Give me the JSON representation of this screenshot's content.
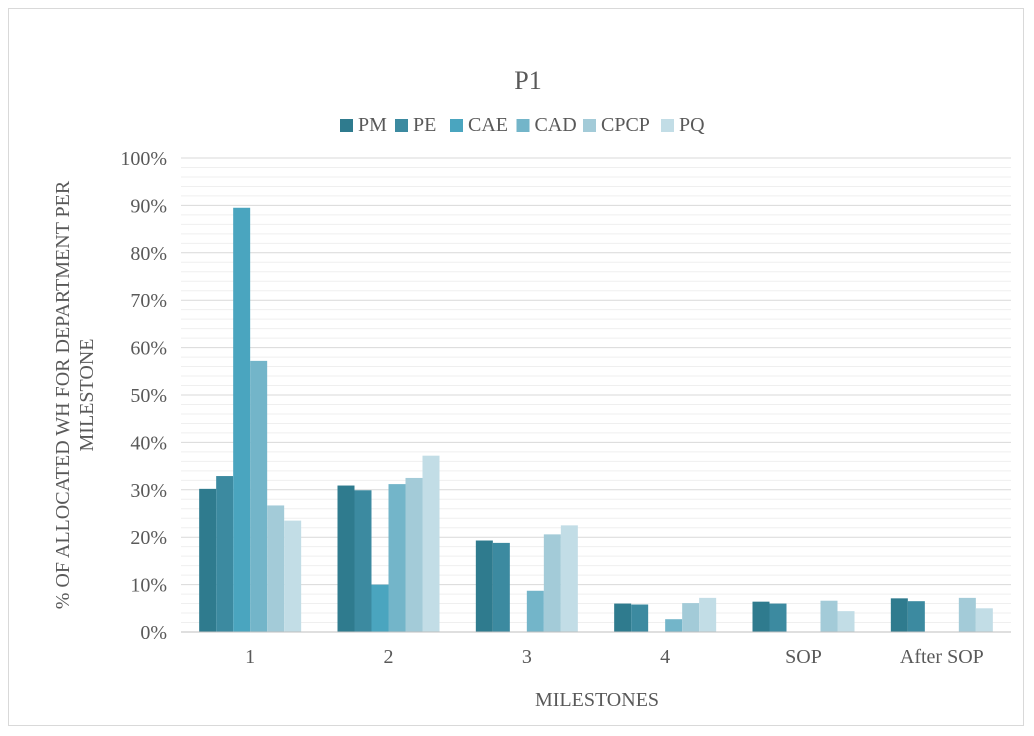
{
  "chart_data": {
    "type": "bar",
    "title": "P1",
    "xlabel": "MILESTONES",
    "ylabel_lines": [
      "% OF ALLOCATED WH FOR DEPARTMENT PER",
      "MILESTONE"
    ],
    "categories": [
      "1",
      "2",
      "3",
      "4",
      "SOP",
      "After SOP"
    ],
    "ylim": [
      0,
      1
    ],
    "yticks": [
      "0%",
      "10%",
      "20%",
      "30%",
      "40%",
      "50%",
      "60%",
      "70%",
      "80%",
      "90%",
      "100%"
    ],
    "grid": true,
    "minor_grid": true,
    "legend_position": "top",
    "series": [
      {
        "name": "PM",
        "color": "#2f7b8e",
        "values": [
          0.302,
          0.309,
          0.193,
          0.06,
          0.064,
          0.071
        ]
      },
      {
        "name": "PE",
        "color": "#3c8aa0",
        "values": [
          0.329,
          0.299,
          0.188,
          0.058,
          0.06,
          0.065
        ]
      },
      {
        "name": "CAE",
        "color": "#4aa5bf",
        "values": [
          0.895,
          0.1,
          0.0,
          0.0,
          0.0,
          0.0
        ]
      },
      {
        "name": "CAD",
        "color": "#73b5c9",
        "values": [
          0.572,
          0.312,
          0.087,
          0.027,
          0.0,
          0.0
        ]
      },
      {
        "name": "CPCP",
        "color": "#a3cbd8",
        "values": [
          0.267,
          0.325,
          0.206,
          0.061,
          0.066,
          0.072
        ]
      },
      {
        "name": "PQ",
        "color": "#c2dde6",
        "values": [
          0.235,
          0.372,
          0.225,
          0.072,
          0.044,
          0.05
        ]
      }
    ]
  }
}
